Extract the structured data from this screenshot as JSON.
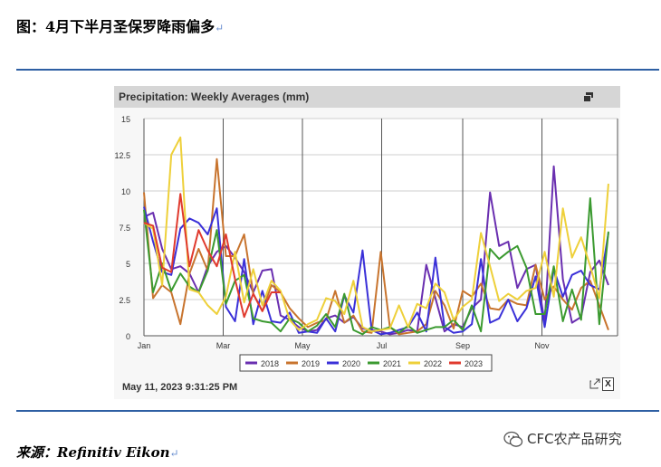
{
  "figure_title": "图：4月下半月圣保罗降雨偏多",
  "para_mark": "↵",
  "panel": {
    "title": "Precipitation: Weekly Averages (mm)",
    "timestamp": "May 11, 2023 9:31:25 PM",
    "excel_label": "X"
  },
  "source": "来源：Refinitiv Eikon",
  "watermark": "CFC农产品研究",
  "chart_data": {
    "type": "line",
    "title": "Precipitation: Weekly Averages (mm)",
    "xlabel": "",
    "ylabel": "",
    "ylim": [
      0,
      15
    ],
    "yticks": [
      "0",
      "2.5",
      "5",
      "7.5",
      "10",
      "12.5",
      "15"
    ],
    "xlim": [
      0,
      52
    ],
    "xticks": [
      {
        "week": 0,
        "label": "Jan"
      },
      {
        "week": 8.7,
        "label": "Mar"
      },
      {
        "week": 17.4,
        "label": "May"
      },
      {
        "week": 26.1,
        "label": "Jul"
      },
      {
        "week": 35,
        "label": "Sep"
      },
      {
        "week": 43.7,
        "label": "Nov"
      }
    ],
    "grid": true,
    "legend_position": "bottom",
    "series": [
      {
        "name": "2018",
        "color": "#6a2fb0",
        "values": [
          8.2,
          8.5,
          6,
          4.6,
          4.8,
          4.3,
          3,
          4.8,
          5.8,
          6.2,
          5.4,
          4.4,
          3,
          4.5,
          4.6,
          1.4,
          1.1,
          0.6,
          0.3,
          0.4,
          1.2,
          1.4,
          0.9,
          1.3,
          0.5,
          0.4,
          0.3,
          0.1,
          0.2,
          0.4,
          0.3,
          4.9,
          2.6,
          0.3,
          0.8,
          0.6,
          1.9,
          2.5,
          9.9,
          6.2,
          6.5,
          3.3,
          4.6,
          4.9,
          0.9,
          11.7,
          3.9,
          0.9,
          1.3,
          4.4,
          5.2,
          3.5
        ]
      },
      {
        "name": "2019",
        "color": "#c8742e",
        "values": [
          9.9,
          2.6,
          3.5,
          3,
          0.8,
          4.3,
          6,
          4.5,
          12.2,
          5.5,
          5.5,
          7,
          2.9,
          1.7,
          3.5,
          3,
          1.9,
          1.2,
          0.6,
          0.9,
          1.1,
          3.1,
          0.9,
          1.4,
          0.3,
          0.2,
          5.8,
          0.6,
          0.1,
          0.2,
          0.3,
          0.8,
          3.1,
          2.1,
          0.5,
          3.1,
          2.7,
          3.6,
          1.9,
          1.8,
          2.5,
          2.2,
          2.1,
          4.9,
          2.5,
          3.4,
          2.5,
          1.8,
          3.3,
          3.8,
          2.1,
          0.4
        ]
      },
      {
        "name": "2020",
        "color": "#3a30d8",
        "values": [
          8.9,
          6.5,
          4.4,
          4.2,
          7.4,
          8.1,
          7.8,
          7,
          8.8,
          2,
          1,
          5.3,
          0.8,
          3.1,
          1,
          0.9,
          1.6,
          0.2,
          0.3,
          0.2,
          1.2,
          0.3,
          2.8,
          1.6,
          5.9,
          0.4,
          0.1,
          0.2,
          0.4,
          0.6,
          1.6,
          0.3,
          5.4,
          0.6,
          0.2,
          0.3,
          0.8,
          5.3,
          0.9,
          1.2,
          2.5,
          1,
          1.9,
          4.1,
          0.6,
          4.6,
          2.7,
          4.2,
          4.5,
          3.5,
          3.2,
          7.1
        ]
      },
      {
        "name": "2021",
        "color": "#3b9a30",
        "values": [
          8.7,
          3,
          5,
          3.1,
          4.3,
          3.4,
          3,
          4.5,
          7.3,
          2.2,
          3.8,
          4.2,
          1.2,
          1,
          0.9,
          0.3,
          1.2,
          0.9,
          0.3,
          0.7,
          1.5,
          0.6,
          2.9,
          0.4,
          0.1,
          0.6,
          0.4,
          0.6,
          0.2,
          0.7,
          0.2,
          0.4,
          0.6,
          0.6,
          1.1,
          0.4,
          2.1,
          0.3,
          6,
          5.3,
          5.8,
          6.2,
          4.7,
          1.5,
          1.5,
          4.8,
          1,
          3.2,
          1.1,
          9.5,
          0.8,
          7.2
        ]
      },
      {
        "name": "2022",
        "color": "#eed03a",
        "values": [
          7.8,
          7.4,
          3.5,
          12.5,
          13.7,
          3.2,
          3,
          2.1,
          1.5,
          2.7,
          5.8,
          2.3,
          4.6,
          2.1,
          3.8,
          3.1,
          1.1,
          0.4,
          0.8,
          1.1,
          2.6,
          2.4,
          1.5,
          3.8,
          0.6,
          0.3,
          0.4,
          0.5,
          2.1,
          0.6,
          2.2,
          1.9,
          3.6,
          3,
          1.1,
          2,
          2.5,
          7.1,
          4.8,
          2.4,
          2.9,
          2.5,
          3.1,
          3.3,
          5.8,
          2.7,
          8.8,
          5.4,
          6.8,
          4.8,
          2.6,
          10.5
        ]
      },
      {
        "name": "2023",
        "color": "#e03a2e",
        "values": [
          7.8,
          7.6,
          4.7,
          4.4,
          9.8,
          4.8,
          7.3,
          5.9,
          4.8,
          7,
          3.9,
          1.3,
          2.9,
          1.7,
          3,
          3
        ]
      }
    ]
  }
}
